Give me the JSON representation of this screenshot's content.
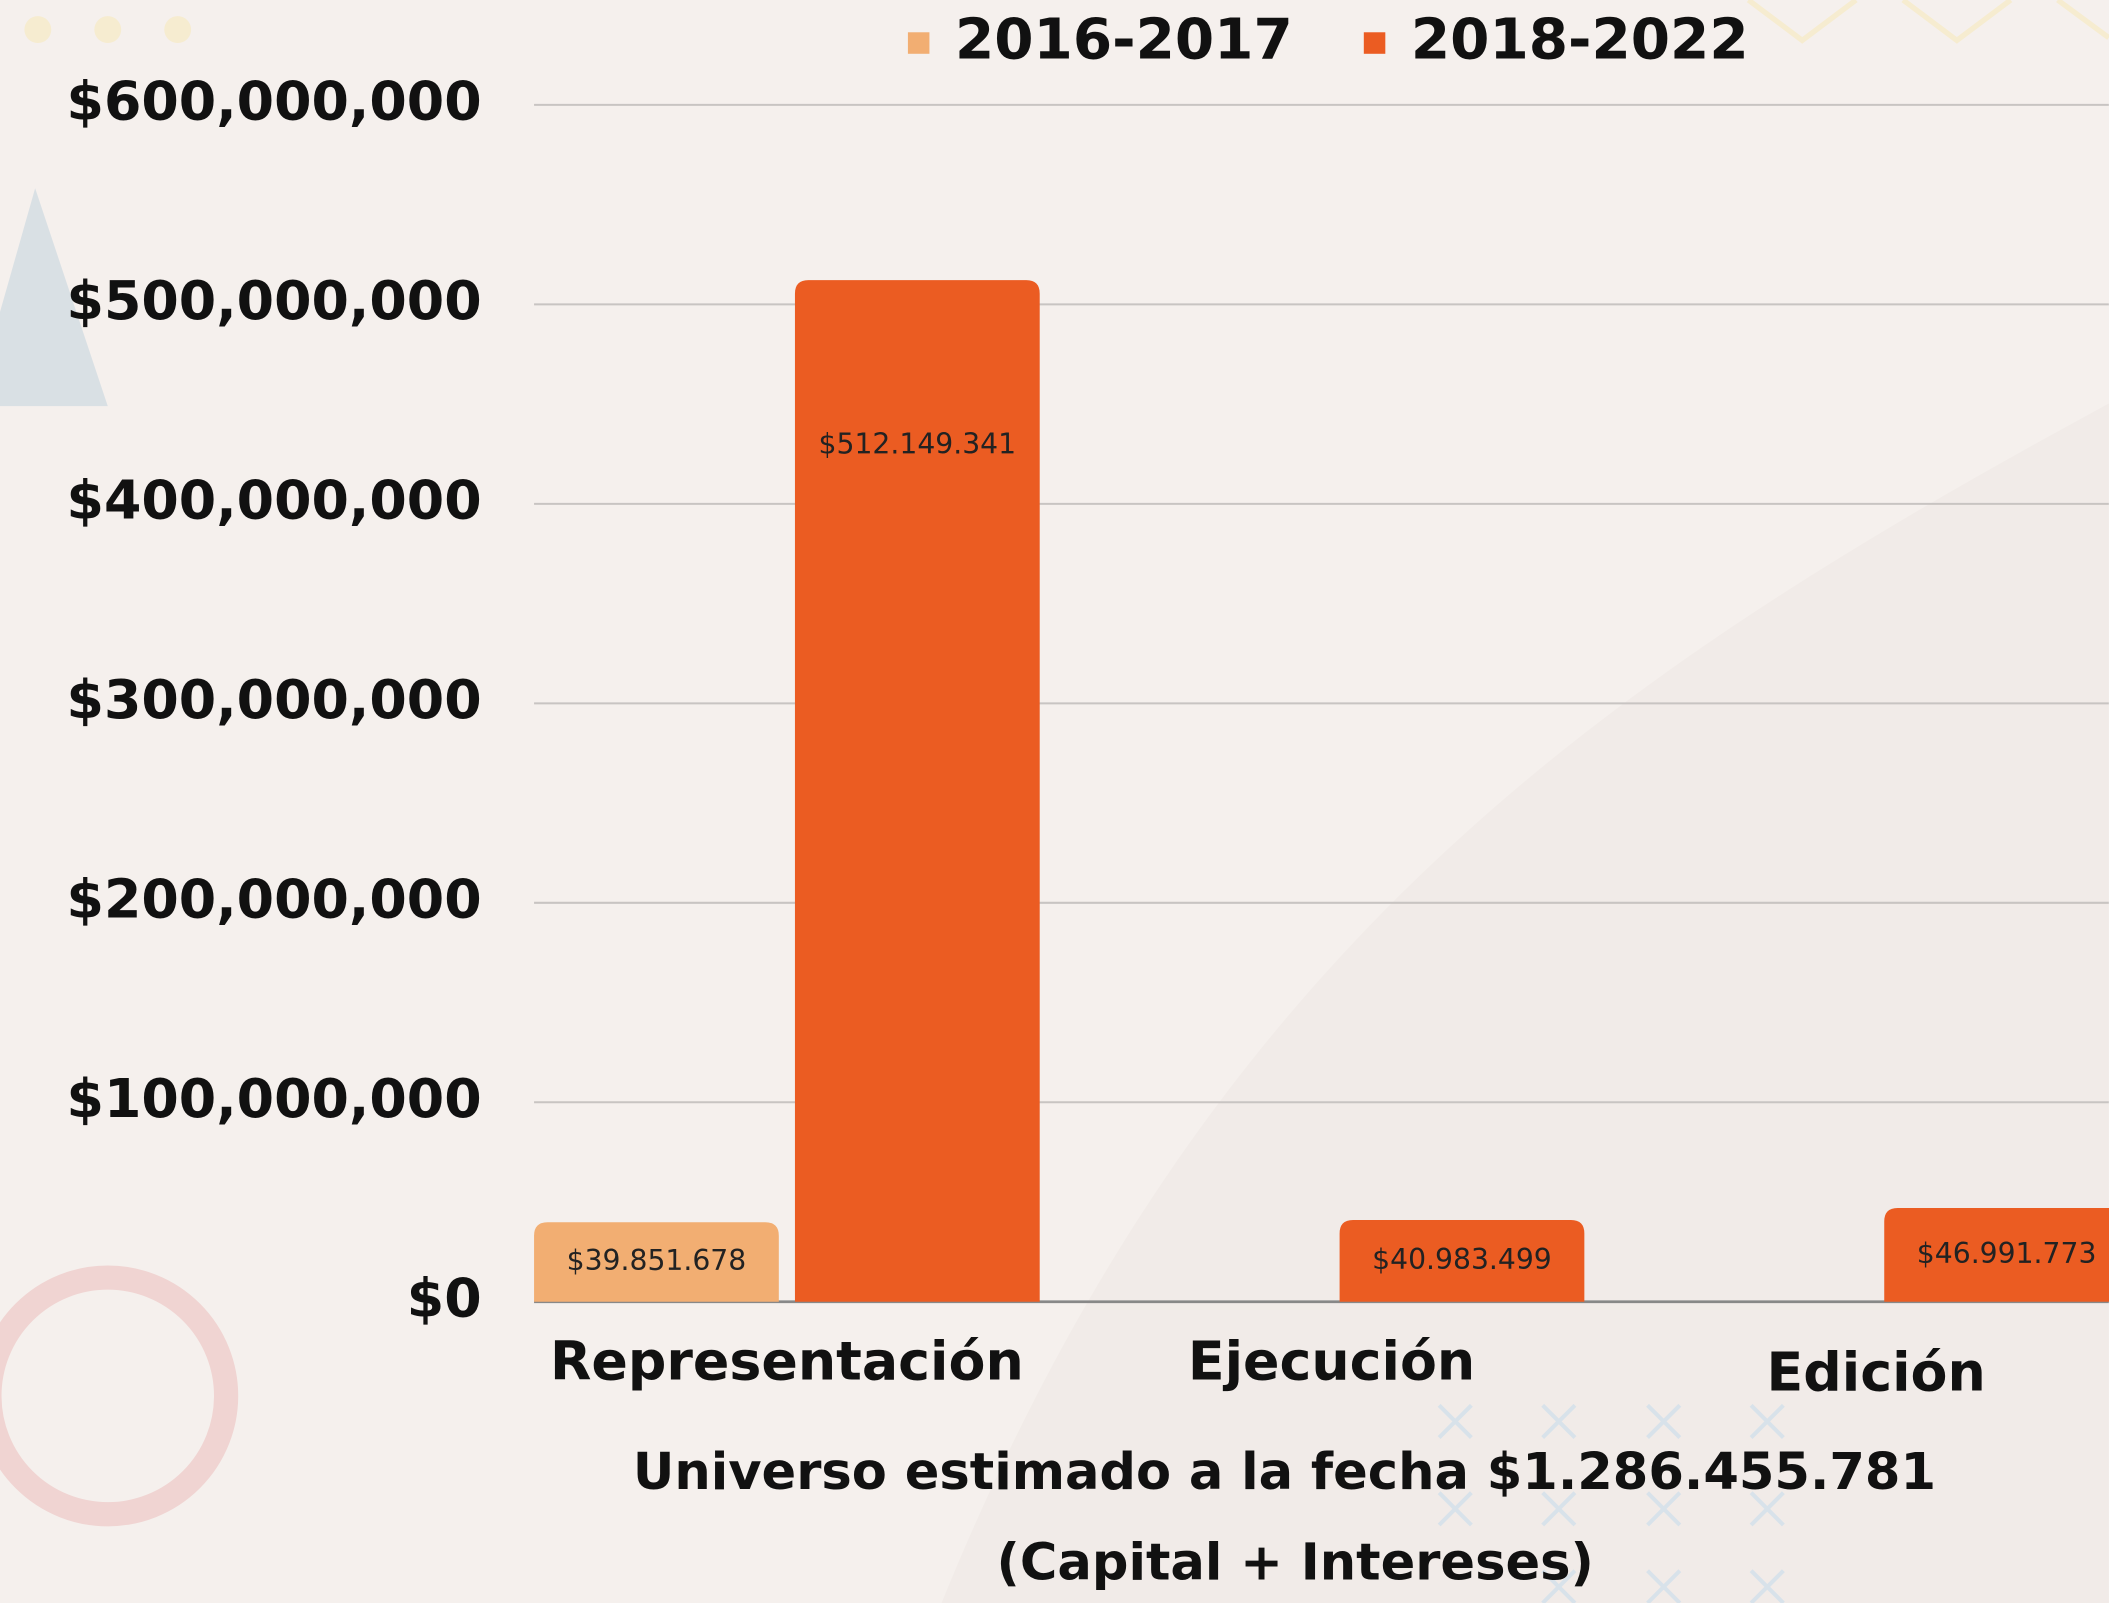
{
  "chart_data": {
    "type": "bar",
    "categories": [
      "Representación",
      "Ejecución",
      "Edición"
    ],
    "series": [
      {
        "name": "2016-2017",
        "color": "#f2ae72",
        "values": [
          39851678,
          null,
          null
        ],
        "value_labels": [
          "$39.851.678",
          null,
          null
        ]
      },
      {
        "name": "2018-2022",
        "color": "#eb5c22",
        "values": [
          512149341,
          40983499,
          46991773
        ],
        "value_labels": [
          "$512.149.341",
          "$40.983.499",
          "$46.991.773"
        ]
      }
    ],
    "ylim": [
      0,
      600000000
    ],
    "yticks": [
      {
        "value": 0,
        "label": "$0"
      },
      {
        "value": 100000000,
        "label": "$100,000,000"
      },
      {
        "value": 200000000,
        "label": "$200,000,000"
      },
      {
        "value": 300000000,
        "label": "$300,000,000"
      },
      {
        "value": 400000000,
        "label": "$400,000,000"
      },
      {
        "value": 500000000,
        "label": "$500,000,000"
      },
      {
        "value": 600000000,
        "label": "$600,000,000"
      }
    ],
    "grid": true,
    "legend": "top",
    "annotations": [
      "Universo estimado a la fecha $1.286.455.781",
      "(Capital + Intereses)"
    ]
  }
}
